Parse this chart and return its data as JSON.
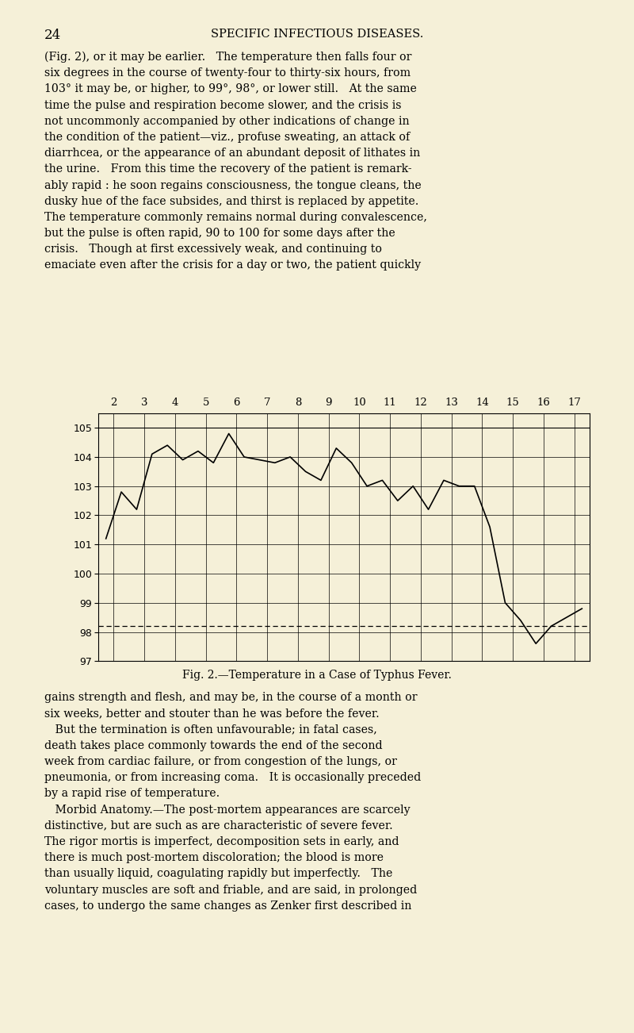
{
  "background_color": "#f5f0d8",
  "page_number": "24",
  "header_text": "SPECIFIC INFECTIOUS DISEASES.",
  "fig_caption": "Fig. 2.—Temperature in a Case of Typhus Fever.",
  "para1_lines": [
    "(Fig. 2), or it may be earlier.   The temperature then falls four or",
    "six degrees in the course of twenty-four to thirty-six hours, from",
    "103° it may be, or higher, to 99°, 98°, or lower still.   At the same",
    "time the pulse and respiration become slower, and the crisis is",
    "not uncommonly accompanied by other indications of change in",
    "the condition of the patient—viz., profuse sweating, an attack of",
    "diarrhcea, or the appearance of an abundant deposit of lithates in",
    "the urine.   From this time the recovery of the patient is remark-",
    "ably rapid : he soon regains consciousness, the tongue cleans, the",
    "dusky hue of the face subsides, and thirst is replaced by appetite.",
    "The temperature commonly remains normal during convalescence,",
    "but the pulse is often rapid, 90 to 100 for some days after the",
    "crisis.   Though at first excessively weak, and continuing to",
    "emaciate even after the crisis for a day or two, the patient quickly"
  ],
  "para2_lines": [
    "gains strength and flesh, and may be, in the course of a month or",
    "six weeks, better and stouter than he was before the fever.",
    "   But the termination is often unfavourable; in fatal cases,",
    "death takes place commonly towards the end of the second",
    "week from cardiac failure, or from congestion of the lungs, or",
    "pneumonia, or from increasing coma.   It is occasionally preceded",
    "by a rapid rise of temperature.",
    "   Morbid Anatomy.—The post-mortem appearances are scarcely",
    "distinctive, but are such as are characteristic of severe fever.",
    "The rigor mortis is imperfect, decomposition sets in early, and",
    "there is much post-mortem discoloration; the blood is more",
    "than usually liquid, coagulating rapidly but imperfectly.   The",
    "voluntary muscles are soft and friable, and are said, in prolonged",
    "cases, to undergo the same changes as Zenker first described in"
  ],
  "temp_data": {
    "2am": 101.2,
    "2pm": 102.8,
    "3am": 102.2,
    "3pm": 104.1,
    "4am": 104.4,
    "4pm": 103.9,
    "5am": 104.2,
    "5pm": 103.8,
    "6am": 104.8,
    "6pm": 104.0,
    "7am": 103.9,
    "7pm": 103.8,
    "8am": 104.0,
    "8pm": 103.5,
    "9am": 103.2,
    "9pm": 104.3,
    "10am": 103.8,
    "10pm": 103.0,
    "11am": 103.2,
    "11pm": 102.5,
    "12am": 103.0,
    "12pm": 102.2,
    "13am": 103.2,
    "13pm": 103.0,
    "14am": 103.0,
    "14pm": 101.6,
    "15am": 99.0,
    "15pm": 98.4,
    "16am": 97.6,
    "16pm": 98.2,
    "17am": 98.5,
    "17pm": 98.8
  },
  "y_min": 97,
  "y_max": 105,
  "y_ticks": [
    97,
    98,
    99,
    100,
    101,
    102,
    103,
    104,
    105
  ],
  "dashed_line_y": 98.2,
  "line_color": "#000000",
  "grid_color": "#000000",
  "text_color": "#000000",
  "chart_bg": "#f5f0d8"
}
